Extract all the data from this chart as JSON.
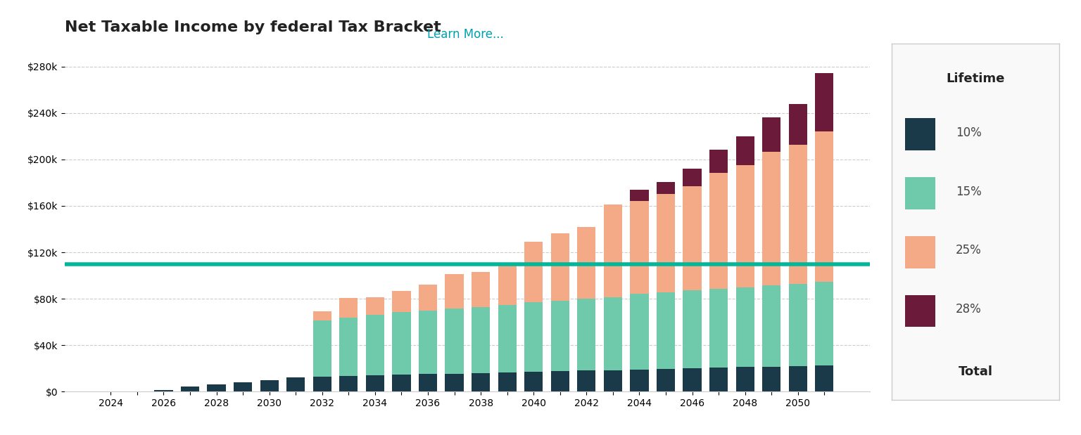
{
  "title": "Net Taxable Income by federal Tax Bracket",
  "title_link_text": "Learn More...",
  "background_color": "#ffffff",
  "plot_bg_color": "#ffffff",
  "years": [
    2024,
    2025,
    2026,
    2027,
    2028,
    2029,
    2030,
    2031,
    2032,
    2033,
    2034,
    2035,
    2036,
    2037,
    2038,
    2039,
    2040,
    2041,
    2042,
    2043,
    2044,
    2045,
    2046,
    2047,
    2048,
    2049,
    2050,
    2051
  ],
  "bracket_10": [
    0,
    0,
    1500,
    4000,
    6000,
    8000,
    10000,
    12000,
    13000,
    13500,
    14000,
    14500,
    15000,
    15500,
    16000,
    16500,
    17000,
    17500,
    18000,
    18500,
    19000,
    19500,
    20000,
    20500,
    21000,
    21500,
    22000,
    22500
  ],
  "bracket_15": [
    0,
    0,
    0,
    0,
    0,
    0,
    0,
    0,
    48000,
    50000,
    52000,
    54000,
    55000,
    56000,
    57000,
    58000,
    60000,
    61000,
    62000,
    63000,
    65000,
    66000,
    67000,
    68000,
    69000,
    70000,
    71000,
    72000
  ],
  "bracket_25": [
    0,
    0,
    0,
    0,
    0,
    0,
    0,
    0,
    8000,
    17000,
    15000,
    18000,
    22000,
    30000,
    30000,
    35000,
    52000,
    58000,
    62000,
    80000,
    80000,
    85000,
    90000,
    100000,
    105000,
    115000,
    120000,
    130000
  ],
  "bracket_28": [
    0,
    0,
    0,
    0,
    0,
    0,
    0,
    0,
    0,
    0,
    0,
    0,
    0,
    0,
    0,
    0,
    0,
    0,
    0,
    0,
    10000,
    10000,
    15000,
    20000,
    25000,
    30000,
    35000,
    50000
  ],
  "color_10": "#1a3a4a",
  "color_15": "#6ecaaa",
  "color_25": "#f4a987",
  "color_28": "#6b1a3a",
  "hline_y": 110000,
  "hline_color": "#00b899",
  "hline_linewidth": 4,
  "ylim": [
    0,
    300000
  ],
  "yticks": [
    0,
    40000,
    80000,
    120000,
    160000,
    200000,
    240000,
    280000
  ],
  "ytick_labels": [
    "$0",
    "$40k",
    "$80k",
    "$120k",
    "$160k",
    "$200k",
    "$240k",
    "$280k"
  ],
  "grid_color": "#cccccc",
  "grid_style": "--",
  "legend_title": "Lifetime",
  "legend_items": [
    "10%",
    "15%",
    "25%",
    "28%",
    "Total"
  ],
  "legend_colors": [
    "#1a3a4a",
    "#6ecaaa",
    "#f4a987",
    "#6b1a3a"
  ],
  "bar_width": 0.7,
  "xlabel_fontsize": 10,
  "ylabel_fontsize": 10,
  "title_fontsize": 16,
  "tick_fontsize": 10
}
